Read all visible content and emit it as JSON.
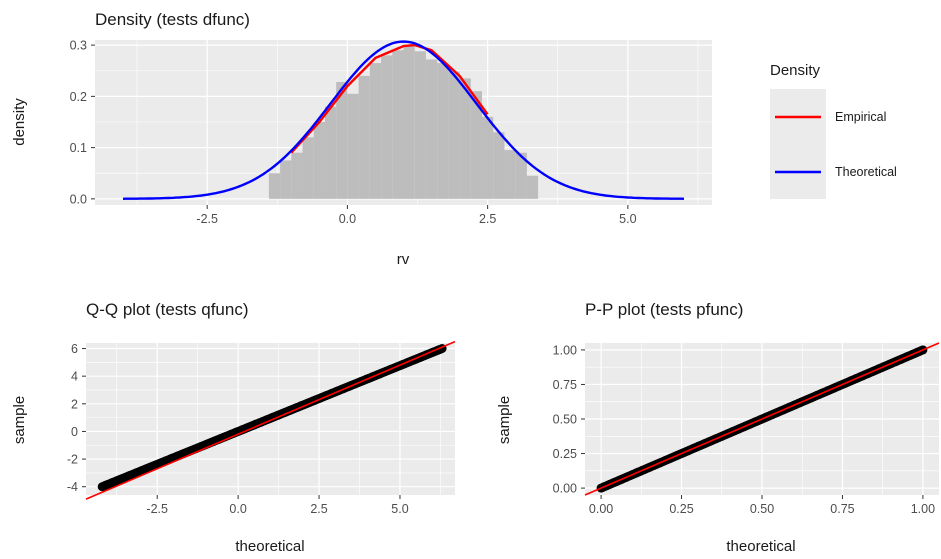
{
  "chart_data": [
    {
      "type": "area",
      "title": "Density (tests dfunc)",
      "xlabel": "rv",
      "ylabel": "density",
      "xlim": [
        -4.5,
        6.5
      ],
      "ylim": [
        -0.012,
        0.31
      ],
      "xticks": [
        -2.5,
        0.0,
        2.5,
        5.0
      ],
      "xtick_labels": [
        "-2.5",
        "0.0",
        "2.5",
        "5.0"
      ],
      "yticks": [
        0.0,
        0.1,
        0.2,
        0.3
      ],
      "ytick_labels": [
        "0.0",
        "0.1",
        "0.2",
        "0.3"
      ],
      "grid": true,
      "legend": {
        "title": "Density",
        "placement": "right",
        "entries": [
          {
            "name": "Empirical",
            "color": "#ff0000"
          },
          {
            "name": "Theoretical",
            "color": "#0000ff"
          }
        ]
      },
      "histogram": {
        "fill": "#bdbdbd",
        "bins": [
          -1.4,
          -1.2,
          -1.0,
          -0.8,
          -0.6,
          -0.4,
          -0.2,
          0.0,
          0.2,
          0.4,
          0.6,
          0.8,
          1.0,
          1.2,
          1.4,
          1.6,
          1.8,
          2.0,
          2.2,
          2.4,
          2.6,
          2.8,
          3.0,
          3.2,
          3.4
        ],
        "densities": [
          0.05,
          0.075,
          0.09,
          0.12,
          0.15,
          0.18,
          0.228,
          0.205,
          0.24,
          0.265,
          0.28,
          0.29,
          0.3,
          0.288,
          0.272,
          0.265,
          0.248,
          0.235,
          0.21,
          0.16,
          0.13,
          0.095,
          0.09,
          0.045
        ]
      },
      "series": [
        {
          "name": "Empirical",
          "color": "#ff0000",
          "x": [
            -1.0,
            -0.5,
            0.0,
            0.5,
            1.0,
            1.2,
            1.5,
            2.0,
            2.5
          ],
          "y": [
            0.09,
            0.15,
            0.22,
            0.275,
            0.298,
            0.3,
            0.29,
            0.24,
            0.165
          ]
        },
        {
          "name": "Theoretical",
          "color": "#0000ff",
          "distribution": "normal",
          "mean": 1.0,
          "sd": 1.3,
          "x_range": [
            -4.0,
            6.0
          ]
        }
      ]
    },
    {
      "type": "scatter",
      "title": "Q-Q plot (tests qfunc)",
      "xlabel": "theoretical",
      "ylabel": "sample",
      "xlim": [
        -4.7,
        6.7
      ],
      "ylim": [
        -4.6,
        6.4
      ],
      "xticks": [
        -2.5,
        0.0,
        2.5,
        5.0
      ],
      "xtick_labels": [
        "-2.5",
        "0.0",
        "2.5",
        "5.0"
      ],
      "yticks": [
        -4,
        -2,
        0,
        2,
        4,
        6
      ],
      "ytick_labels": [
        "-4",
        "-2",
        "0",
        "2",
        "4",
        "6"
      ],
      "grid": true,
      "points": {
        "color": "#000000",
        "x_range": [
          -4.2,
          6.3
        ],
        "y_range": [
          -4.0,
          6.0
        ]
      },
      "reference_line": {
        "color": "#ff0000",
        "slope": 1,
        "intercept": -0.2
      }
    },
    {
      "type": "scatter",
      "title": "P-P plot (tests pfunc)",
      "xlabel": "theoretical",
      "ylabel": "sample",
      "xlim": [
        -0.05,
        1.05
      ],
      "ylim": [
        -0.05,
        1.05
      ],
      "xticks": [
        0.0,
        0.25,
        0.5,
        0.75,
        1.0
      ],
      "xtick_labels": [
        "0.00",
        "0.25",
        "0.50",
        "0.75",
        "1.00"
      ],
      "yticks": [
        0.0,
        0.25,
        0.5,
        0.75,
        1.0
      ],
      "ytick_labels": [
        "0.00",
        "0.25",
        "0.50",
        "0.75",
        "1.00"
      ],
      "grid": true,
      "points": {
        "color": "#000000",
        "x_range": [
          0.0,
          1.0
        ],
        "y_range": [
          0.0,
          1.0
        ]
      },
      "reference_line": {
        "color": "#ff0000",
        "slope": 1,
        "intercept": 0
      }
    }
  ]
}
